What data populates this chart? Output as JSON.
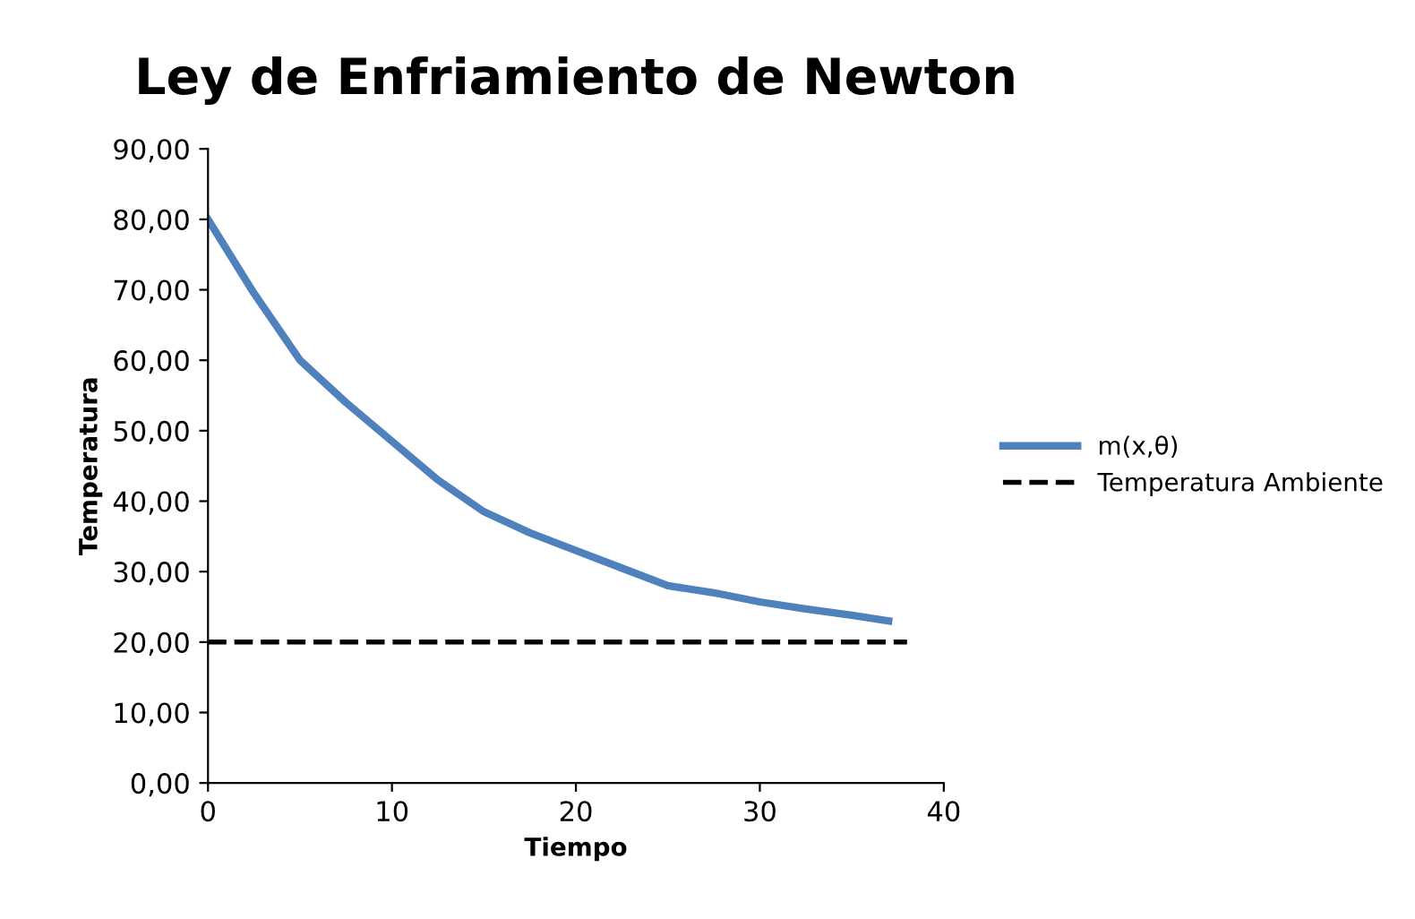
{
  "chart_data": {
    "type": "line",
    "title": "Ley de Enfriamiento de Newton",
    "xlabel": "Tiempo",
    "ylabel": "Temperatura",
    "xlim": [
      0,
      40
    ],
    "xticks": [
      0,
      10,
      20,
      30,
      40
    ],
    "ylim": [
      0,
      90
    ],
    "yticks": [
      {
        "value": 0,
        "label": "0,00"
      },
      {
        "value": 10,
        "label": "10,00"
      },
      {
        "value": 20,
        "label": "20,00"
      },
      {
        "value": 30,
        "label": "30,00"
      },
      {
        "value": 40,
        "label": "40,00"
      },
      {
        "value": 50,
        "label": "50,00"
      },
      {
        "value": 60,
        "label": "60,00"
      },
      {
        "value": 70,
        "label": "70,00"
      },
      {
        "value": 80,
        "label": "80,00"
      },
      {
        "value": 90,
        "label": "90,00"
      }
    ],
    "grid": false,
    "legend": "right",
    "marker": "none",
    "series": [
      {
        "name": "m(x,θ)",
        "color": "#4f81bd",
        "line_style": "solid",
        "x": [
          0,
          2.5,
          5,
          7.5,
          10,
          12.5,
          15,
          17.5,
          20,
          22.5,
          25,
          27.5,
          30,
          32.5,
          35,
          37
        ],
        "values": [
          80,
          69.5,
          60,
          54,
          48.5,
          43,
          38.5,
          35.5,
          33,
          30.5,
          28,
          27,
          25.7,
          24.7,
          23.8,
          23
        ]
      },
      {
        "name": "Temperatura Ambiente",
        "color": "#000000",
        "line_style": "dashed",
        "x": [
          0,
          38
        ],
        "values": [
          20,
          20
        ]
      }
    ]
  }
}
